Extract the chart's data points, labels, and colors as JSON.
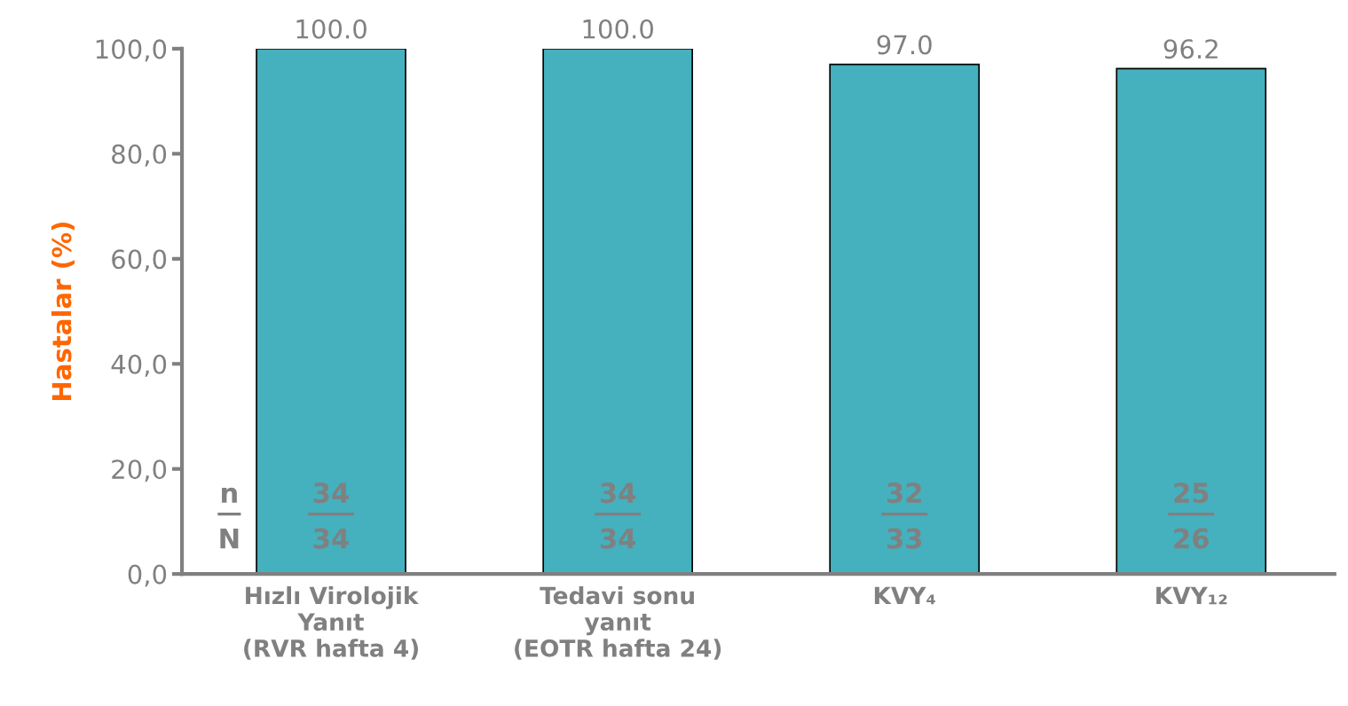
{
  "chart_data": {
    "type": "bar",
    "ylabel": "Hastalar (%)",
    "categories": [
      "Hızlı Virolojik\nYanıt\n(RVR hafta 4)",
      "Tedavi sonu\nyanıt\n(EOTR hafta 24)",
      "KVY₄",
      "KVY₁₂"
    ],
    "values": [
      100.0,
      100.0,
      97.0,
      96.2
    ],
    "color": "#45b0be",
    "value_labels": [
      "100.0",
      "100.0",
      "97.0",
      "96.2"
    ],
    "ylim": [
      0,
      100
    ],
    "yticks": [
      {
        "value": 0,
        "label": "0,0"
      },
      {
        "value": 20,
        "label": "20,0"
      },
      {
        "value": 40,
        "label": "40,0"
      },
      {
        "value": 60,
        "label": "60,0"
      },
      {
        "value": 80,
        "label": "80,0"
      },
      {
        "value": 100,
        "label": "100,0"
      }
    ],
    "grid": false,
    "legend": false,
    "annotations": [
      "n",
      "N",
      "34",
      "34",
      "34",
      "34",
      "32",
      "33",
      "25",
      "26"
    ]
  }
}
